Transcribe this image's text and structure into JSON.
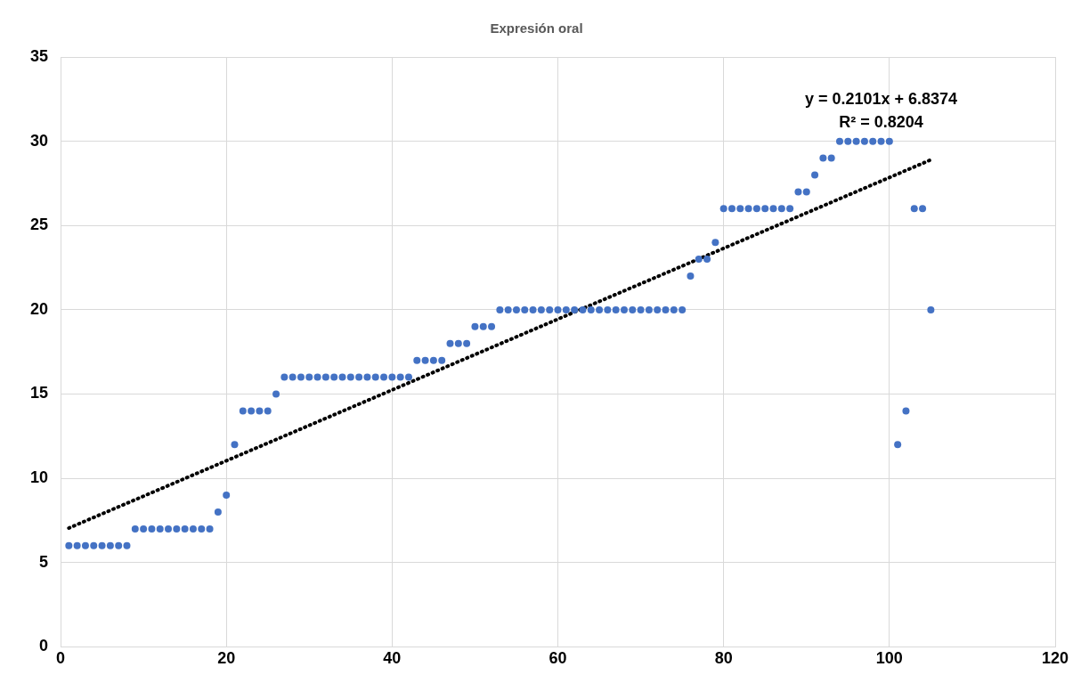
{
  "chart_data": {
    "type": "scatter",
    "title": "Expresión oral",
    "marker": "circle",
    "grid": true,
    "legend": false,
    "xlim": [
      0,
      120
    ],
    "xticks": [
      0,
      20,
      40,
      60,
      80,
      100,
      120
    ],
    "ylim": [
      0,
      35
    ],
    "yticks": [
      0,
      5,
      10,
      15,
      20,
      25,
      30,
      35
    ],
    "series": [
      {
        "color": "#4472c4",
        "x": [
          1,
          2,
          3,
          4,
          5,
          6,
          7,
          8,
          9,
          10,
          11,
          12,
          13,
          14,
          15,
          16,
          17,
          18,
          19,
          20,
          21,
          22,
          23,
          24,
          25,
          26,
          27,
          28,
          29,
          30,
          31,
          32,
          33,
          34,
          35,
          36,
          37,
          38,
          39,
          40,
          41,
          42,
          43,
          44,
          45,
          46,
          47,
          48,
          49,
          50,
          51,
          52,
          53,
          54,
          55,
          56,
          57,
          58,
          59,
          60,
          61,
          62,
          63,
          64,
          65,
          66,
          67,
          68,
          69,
          70,
          71,
          72,
          73,
          74,
          75,
          76,
          77,
          78,
          79,
          80,
          81,
          82,
          83,
          84,
          85,
          86,
          87,
          88,
          89,
          90,
          91,
          92,
          93,
          94,
          95,
          96,
          97,
          98,
          99,
          100,
          101,
          102,
          103,
          104,
          105
        ],
        "values": [
          6,
          6,
          6,
          6,
          6,
          6,
          6,
          6,
          7,
          7,
          7,
          7,
          7,
          7,
          7,
          7,
          7,
          7,
          8,
          9,
          12,
          14,
          14,
          14,
          14,
          15,
          16,
          16,
          16,
          16,
          16,
          16,
          16,
          16,
          16,
          16,
          16,
          16,
          16,
          16,
          16,
          16,
          17,
          17,
          17,
          17,
          18,
          18,
          18,
          19,
          19,
          19,
          20,
          20,
          20,
          20,
          20,
          20,
          20,
          20,
          20,
          20,
          20,
          20,
          20,
          20,
          20,
          20,
          20,
          20,
          20,
          20,
          20,
          20,
          20,
          22,
          23,
          23,
          24,
          26,
          26,
          26,
          26,
          26,
          26,
          26,
          26,
          26,
          27,
          27,
          28,
          29,
          29,
          30,
          30,
          30,
          30,
          30,
          30,
          30,
          12,
          14,
          26,
          26,
          20
        ]
      },
      {
        "type": "line",
        "color": "#000000",
        "line_style": "dotted",
        "marker": "none",
        "x": [
          1,
          105
        ],
        "values": [
          7.05,
          28.9
        ]
      }
    ],
    "annotations": [
      "y = 0.2101x + 6.8374",
      "R² = 0.8204"
    ]
  }
}
